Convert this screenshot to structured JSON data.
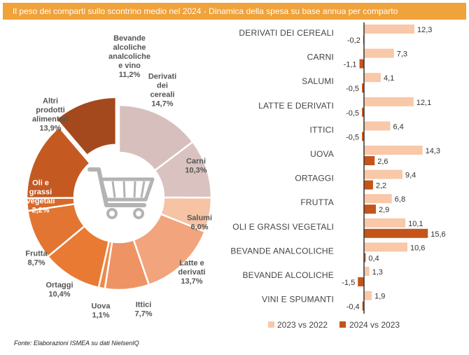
{
  "title": "Il peso dei comparti sullo scontrino medio nel 2024 - Dinamica della spesa su base annua per comparto",
  "source": "Fonte: Elaborazioni ISMEA su dati NielsenIQ",
  "colors": {
    "header": "#f0a23b",
    "series_2023": "#f8c8a8",
    "series_2024": "#c4541a"
  },
  "chart_data": [
    {
      "type": "pie",
      "variant": "donut",
      "title": "Il peso dei comparti sullo scontrino medio nel 2024",
      "unit": "%",
      "slices": [
        {
          "name": "Derivati dei cereali",
          "value": 14.7,
          "label_lines": [
            "Derivati",
            "dei",
            "cereali",
            "14,7%"
          ],
          "color": "#d6bfbc"
        },
        {
          "name": "Carni",
          "value": 10.3,
          "label_lines": [
            "Carni",
            "10,3%"
          ],
          "color": "#d9c2c0"
        },
        {
          "name": "Salumi",
          "value": 6.0,
          "label_lines": [
            "Salumi",
            "6,0%"
          ],
          "color": "#f6c3a4"
        },
        {
          "name": "Latte e derivati",
          "value": 13.7,
          "label_lines": [
            "Latte e",
            "derivati",
            "13,7%"
          ],
          "color": "#f2a47c"
        },
        {
          "name": "Ittici",
          "value": 7.7,
          "label_lines": [
            "Ittici",
            "7,7%"
          ],
          "color": "#ee9364"
        },
        {
          "name": "Uova",
          "value": 1.1,
          "label_lines": [
            "Uova",
            "1,1%"
          ],
          "color": "#ee8a4a"
        },
        {
          "name": "Ortaggi",
          "value": 10.4,
          "label_lines": [
            "Ortaggi",
            "10,4%"
          ],
          "color": "#e97a33"
        },
        {
          "name": "Frutta",
          "value": 8.7,
          "label_lines": [
            "Frutta",
            "8,7%"
          ],
          "color": "#e27532"
        },
        {
          "name": "Oli e grassi vegetali",
          "value": 2.2,
          "label_lines": [
            "Oli e",
            "grassi",
            "vegetali",
            "2,2%"
          ],
          "color": "#d8692a"
        },
        {
          "name": "Altri prodotti alimentari",
          "value": 13.9,
          "label_lines": [
            "Altri",
            "prodotti",
            "alimentari",
            "13,9%"
          ],
          "color": "#c45a22"
        },
        {
          "name": "Bevande alcoliche analcoliche e vino",
          "value": 11.2,
          "label_lines": [
            "Bevande",
            "alcoliche",
            "analcoliche",
            "e vino",
            "11,2%"
          ],
          "color": "#a4491d",
          "exploded": true
        }
      ]
    },
    {
      "type": "bar",
      "orientation": "horizontal",
      "title": "Dinamica della spesa su base annua per comparto",
      "categories": [
        "DERIVATI DEI CEREALI",
        "CARNI",
        "SALUMI",
        "LATTE E DERIVATI",
        "ITTICI",
        "UOVA",
        "ORTAGGI",
        "FRUTTA",
        "OLI E GRASSI VEGETALI",
        "BEVANDE ANALCOLICHE",
        "BEVANDE ALCOLICHE",
        "VINI E SPUMANTI"
      ],
      "series": [
        {
          "name": "2023 vs 2022",
          "values": [
            12.3,
            7.3,
            4.1,
            12.1,
            6.4,
            14.3,
            9.4,
            6.8,
            10.1,
            10.6,
            1.3,
            1.9
          ],
          "labels": [
            "12,3",
            "7,3",
            "4,1",
            "12,1",
            "6,4",
            "14,3",
            "9,4",
            "6,8",
            "10,1",
            "10,6",
            "1,3",
            "1,9"
          ]
        },
        {
          "name": "2024 vs 2023",
          "values": [
            -0.2,
            -1.1,
            -0.5,
            -0.5,
            -0.5,
            2.6,
            2.2,
            2.9,
            15.6,
            0.4,
            -1.5,
            -0.4
          ],
          "labels": [
            "-0,2",
            "-1,1",
            "-0,5",
            "-0,5",
            "-0,5",
            "2,6",
            "2,2",
            "2,9",
            "15,6",
            "0,4",
            "-1,5",
            "-0,4"
          ]
        }
      ],
      "xlabel": "",
      "ylabel": "",
      "legend": "bottom"
    }
  ]
}
